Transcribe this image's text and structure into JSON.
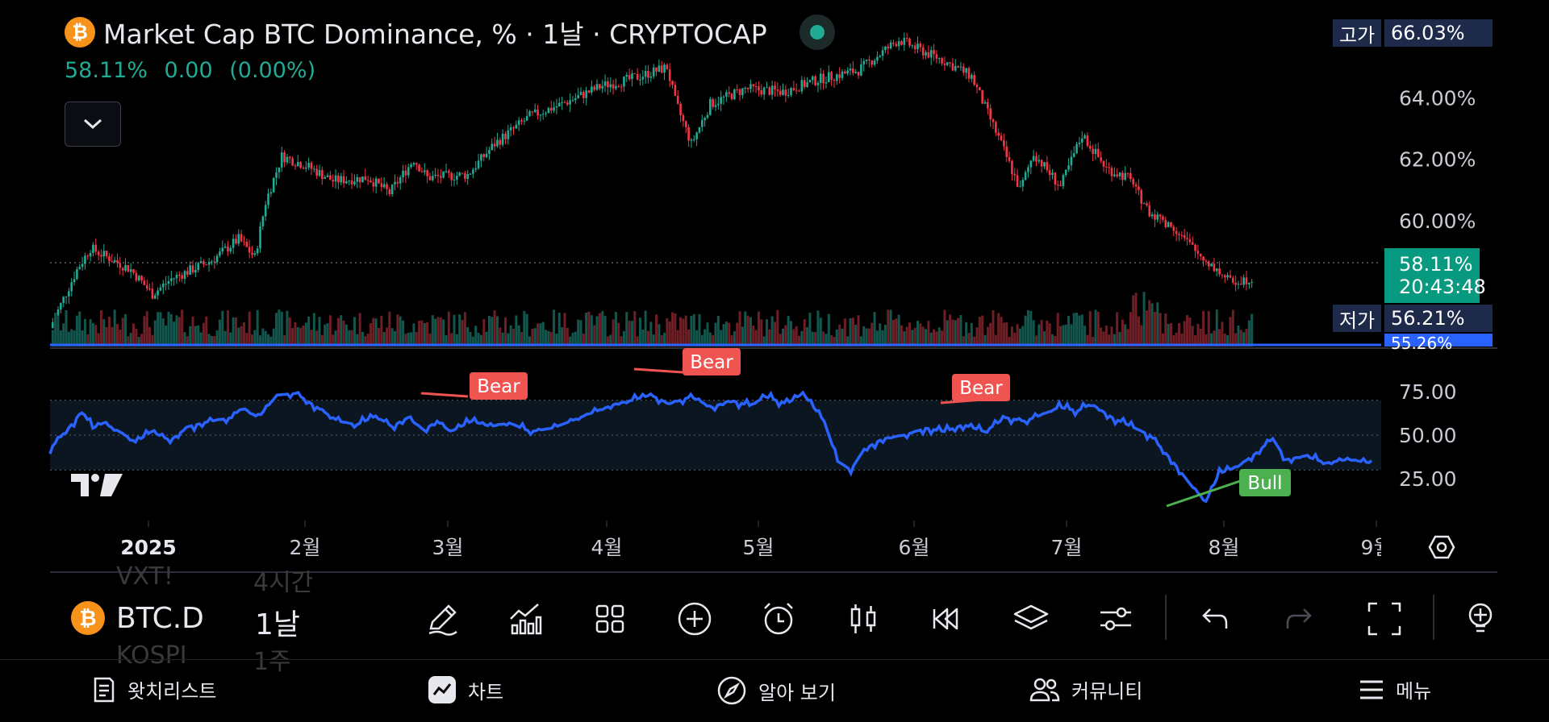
{
  "header": {
    "coin_glyph": "₿",
    "title": "Market Cap BTC Dominance, % · 1날 · CRYPTOCAP",
    "last": "58.11%",
    "change": "0.00",
    "change_pct": "(0.00%)"
  },
  "price_tags": {
    "high_label": "고가",
    "high_value": "66.03%",
    "current_value": "58.11%",
    "countdown": "20:43:48",
    "low_label": "저가",
    "low_value": "56.21%",
    "cut_value": "55.26%"
  },
  "chart_data": [
    {
      "type": "candlestick",
      "title": "Market Cap BTC Dominance, % · 1날 · CRYPTOCAP",
      "y_tick_labels": [
        "64.00%",
        "62.00%",
        "60.00%"
      ],
      "ylim": [
        56.0,
        66.3
      ],
      "x_tick_labels": [
        "2025",
        "2월",
        "3월",
        "4월",
        "5월",
        "6월",
        "7월",
        "8월",
        "9월"
      ],
      "close_path": [
        [
          0,
          56.5
        ],
        [
          10,
          58.4
        ],
        [
          15,
          59.1
        ],
        [
          30,
          58.4
        ],
        [
          38,
          57.6
        ],
        [
          45,
          58.1
        ],
        [
          60,
          58.7
        ],
        [
          70,
          59.4
        ],
        [
          76,
          58.8
        ],
        [
          80,
          60.6
        ],
        [
          86,
          62.1
        ],
        [
          95,
          61.8
        ],
        [
          105,
          61.3
        ],
        [
          118,
          61.4
        ],
        [
          126,
          60.9
        ],
        [
          135,
          62.0
        ],
        [
          140,
          61.4
        ],
        [
          155,
          61.5
        ],
        [
          165,
          62.5
        ],
        [
          178,
          63.4
        ],
        [
          190,
          63.8
        ],
        [
          205,
          64.4
        ],
        [
          215,
          64.6
        ],
        [
          229,
          65.0
        ],
        [
          232,
          63.9
        ],
        [
          238,
          62.5
        ],
        [
          245,
          63.8
        ],
        [
          258,
          64.3
        ],
        [
          272,
          64.2
        ],
        [
          285,
          64.6
        ],
        [
          300,
          64.9
        ],
        [
          315,
          65.9
        ],
        [
          322,
          65.6
        ],
        [
          332,
          65.2
        ],
        [
          342,
          64.7
        ],
        [
          352,
          62.7
        ],
        [
          360,
          61.0
        ],
        [
          365,
          62.2
        ],
        [
          375,
          61.1
        ],
        [
          383,
          62.8
        ],
        [
          392,
          61.7
        ],
        [
          400,
          61.4
        ],
        [
          408,
          60.3
        ],
        [
          418,
          59.7
        ],
        [
          425,
          59.0
        ],
        [
          433,
          58.4
        ],
        [
          438,
          58.0
        ],
        [
          445,
          58.1
        ]
      ],
      "high": 66.03,
      "low": 56.21,
      "last": 58.11
    },
    {
      "type": "line",
      "y_tick_labels": [
        "75.00",
        "50.00",
        "25.00"
      ],
      "ylim": [
        0,
        100
      ],
      "bands": [
        30,
        50,
        70
      ],
      "series": [
        {
          "values": [
            [
              0,
              42
            ],
            [
              8,
              56
            ],
            [
              12,
              64
            ],
            [
              16,
              54
            ],
            [
              20,
              57
            ],
            [
              26,
              52
            ],
            [
              32,
              46
            ],
            [
              38,
              52
            ],
            [
              45,
              47
            ],
            [
              52,
              55
            ],
            [
              60,
              58
            ],
            [
              68,
              60
            ],
            [
              72,
              66
            ],
            [
              78,
              60
            ],
            [
              85,
              73
            ],
            [
              92,
              74
            ],
            [
              100,
              66
            ],
            [
              108,
              58
            ],
            [
              115,
              56
            ],
            [
              122,
              61
            ],
            [
              128,
              55
            ],
            [
              134,
              60
            ],
            [
              140,
              53
            ],
            [
              145,
              58
            ],
            [
              150,
              52
            ],
            [
              158,
              58
            ],
            [
              165,
              55
            ],
            [
              172,
              57
            ],
            [
              180,
              52
            ],
            [
              188,
              54
            ],
            [
              195,
              58
            ],
            [
              205,
              64
            ],
            [
              212,
              68
            ],
            [
              218,
              70
            ],
            [
              225,
              73
            ],
            [
              232,
              68
            ],
            [
              240,
              72
            ],
            [
              248,
              66
            ],
            [
              255,
              70
            ],
            [
              262,
              67
            ],
            [
              268,
              72
            ],
            [
              272,
              70
            ],
            [
              276,
              68
            ],
            [
              282,
              74
            ],
            [
              290,
              58
            ],
            [
              295,
              35
            ],
            [
              300,
              30
            ],
            [
              305,
              42
            ],
            [
              312,
              48
            ],
            [
              320,
              50
            ],
            [
              328,
              54
            ],
            [
              335,
              52
            ],
            [
              342,
              56
            ],
            [
              350,
              52
            ],
            [
              358,
              60
            ],
            [
              365,
              58
            ],
            [
              372,
              62
            ],
            [
              378,
              66
            ],
            [
              385,
              64
            ],
            [
              390,
              68
            ],
            [
              398,
              60
            ],
            [
              405,
              55
            ],
            [
              412,
              50
            ],
            [
              420,
              36
            ],
            [
              428,
              20
            ],
            [
              433,
              12
            ],
            [
              438,
              28
            ],
            [
              445,
              32
            ],
            [
              452,
              40
            ],
            [
              458,
              48
            ],
            [
              463,
              36
            ],
            [
              470,
              38
            ],
            [
              478,
              34
            ],
            [
              486,
              36
            ],
            [
              495,
              34
            ]
          ]
        }
      ],
      "annotations": [
        {
          "label": "Bear",
          "color": "#f05450"
        },
        {
          "label": "Bear",
          "color": "#f05450"
        },
        {
          "label": "Bear",
          "color": "#f05450"
        },
        {
          "label": "Bull",
          "color": "#4caf50"
        }
      ]
    }
  ],
  "toolbar": {
    "symbol": "BTC.D",
    "interval": "1날",
    "ghost_symbol_above": "VXT!",
    "ghost_interval_above": "4시간",
    "ghost_symbol_below": "KOSPI",
    "ghost_interval_below": "1주",
    "icons": [
      "pencil-icon",
      "indicators-icon",
      "templates-icon",
      "add-icon",
      "alert-icon",
      "candle-icon",
      "replay-icon",
      "layers-icon",
      "settings-icon",
      "undo-icon",
      "redo-icon",
      "fullscreen-icon",
      "lightbulb-icon"
    ]
  },
  "bottom_nav": [
    {
      "label": "왓치리스트",
      "icon": "watchlist-icon"
    },
    {
      "label": "차트",
      "icon": "chart-icon"
    },
    {
      "label": "알아 보기",
      "icon": "compass-icon"
    },
    {
      "label": "커뮤니티",
      "icon": "community-icon"
    },
    {
      "label": "메뉴",
      "icon": "menu-icon"
    }
  ],
  "colors": {
    "up": "#22ab94",
    "down": "#f23645",
    "rsi": "#2962ff",
    "background": "#000000",
    "price_tag": "#1e2a4a",
    "current": "#089981",
    "low_tag": "#2962ff"
  }
}
